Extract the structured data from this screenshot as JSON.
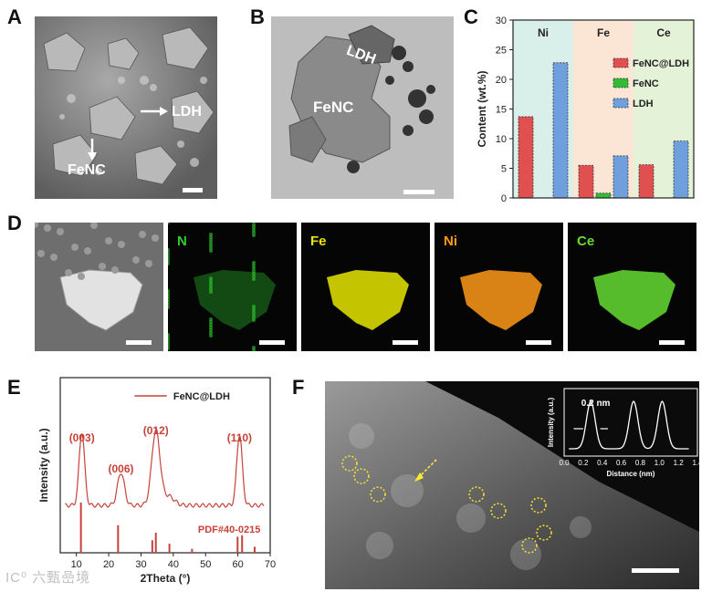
{
  "panels": {
    "A": {
      "letter": "A",
      "labels": {
        "ldh": "LDH",
        "fenc": "FeNC"
      }
    },
    "B": {
      "letter": "B",
      "labels": {
        "ldh": "LDH",
        "fenc": "FeNC"
      }
    },
    "C": {
      "letter": "C"
    },
    "D": {
      "letter": "D",
      "maps": [
        {
          "label": "",
          "color": "#9a9a9a"
        },
        {
          "label": "N",
          "color": "#2ecc2e"
        },
        {
          "label": "Fe",
          "color": "#e6e600"
        },
        {
          "label": "Ni",
          "color": "#ff9a1a"
        },
        {
          "label": "Ce",
          "color": "#66dd33"
        }
      ]
    },
    "E": {
      "letter": "E",
      "legend": "FeNC@LDH",
      "pdf": "PDF#40-0215",
      "peaks": [
        "(003)",
        "(006)",
        "(012)",
        "(110)"
      ]
    },
    "F": {
      "letter": "F",
      "inset": {
        "annotation": "0.2 nm",
        "xlabel": "Distance (nm)",
        "ylabel": "Intensity (a.u.)",
        "xticks": [
          "0.0",
          "0.2",
          "0.4",
          "0.6",
          "0.8",
          "1.0",
          "1.2",
          "1.4"
        ]
      }
    }
  },
  "watermark": "IC⁰ 六甄嵒境",
  "chart_data": [
    {
      "type": "bar",
      "title": "",
      "xlabel": "",
      "ylabel": "Content (wt.%)",
      "ylim": [
        0,
        30
      ],
      "yticks": [
        "0",
        "5",
        "10",
        "15",
        "20",
        "25",
        "30"
      ],
      "categories": [
        "Ni",
        "Fe",
        "Ce"
      ],
      "category_colors": [
        "#d9f0ea",
        "#fbe6d6",
        "#e4f2d8"
      ],
      "series": [
        {
          "name": "FeNC@LDH",
          "color": "#e05050",
          "values": [
            13.7,
            5.5,
            5.6
          ]
        },
        {
          "name": "FeNC",
          "color": "#33bb33",
          "values": [
            null,
            0.8,
            null
          ]
        },
        {
          "name": "LDH",
          "color": "#6fa0dd",
          "values": [
            22.8,
            7.1,
            9.6
          ]
        }
      ],
      "legend": "upper-right"
    },
    {
      "type": "line",
      "title": "",
      "xlabel": "2Theta (°)",
      "ylabel": "Intensity (a.u.)",
      "xlim": [
        5,
        70
      ],
      "xticks": [
        "10",
        "20",
        "30",
        "40",
        "50",
        "60",
        "70"
      ],
      "series": [
        {
          "name": "FeNC@LDH",
          "color": "#c8423a"
        }
      ],
      "peaks": [
        {
          "x": 11.7,
          "label": "(003)"
        },
        {
          "x": 23.8,
          "label": "(006)"
        },
        {
          "x": 34.6,
          "label": "(012)"
        },
        {
          "x": 60.5,
          "label": "(110)"
        }
      ],
      "reference": {
        "name": "PDF#40-0215",
        "sticks": [
          {
            "x": 11.4,
            "h": 1.0
          },
          {
            "x": 22.9,
            "h": 0.55
          },
          {
            "x": 33.5,
            "h": 0.25
          },
          {
            "x": 34.6,
            "h": 0.4
          },
          {
            "x": 38.8,
            "h": 0.18
          },
          {
            "x": 45.8,
            "h": 0.08
          },
          {
            "x": 59.9,
            "h": 0.32
          },
          {
            "x": 61.3,
            "h": 0.35
          },
          {
            "x": 65.2,
            "h": 0.12
          }
        ]
      }
    },
    {
      "type": "line",
      "title": "",
      "xlabel": "Distance (nm)",
      "ylabel": "Intensity (a.u.)",
      "xlim": [
        0,
        1.4
      ],
      "series": [
        {
          "name": "",
          "color": "#ffffff"
        }
      ],
      "peak_positions": [
        0.28,
        0.73,
        1.03
      ]
    }
  ]
}
